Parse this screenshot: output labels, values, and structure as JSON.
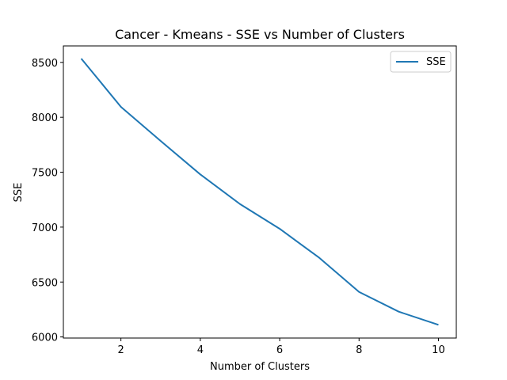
{
  "chart_data": {
    "type": "line",
    "title": "Cancer - Kmeans - SSE vs Number of Clusters",
    "xlabel": "Number of Clusters",
    "ylabel": "SSE",
    "xlim": [
      0.55,
      10.45
    ],
    "ylim": [
      5990,
      8650
    ],
    "xticks": [
      2,
      4,
      6,
      8,
      10
    ],
    "yticks": [
      6000,
      6500,
      7000,
      7500,
      8000,
      8500
    ],
    "grid": false,
    "legend_position": "top-right",
    "series": [
      {
        "name": "SSE",
        "color": "#1f77b4",
        "x": [
          1,
          2,
          3,
          4,
          5,
          6,
          7,
          8,
          9,
          10
        ],
        "y": [
          8535,
          8095,
          7785,
          7480,
          7210,
          6985,
          6720,
          6410,
          6230,
          6110
        ]
      }
    ]
  }
}
